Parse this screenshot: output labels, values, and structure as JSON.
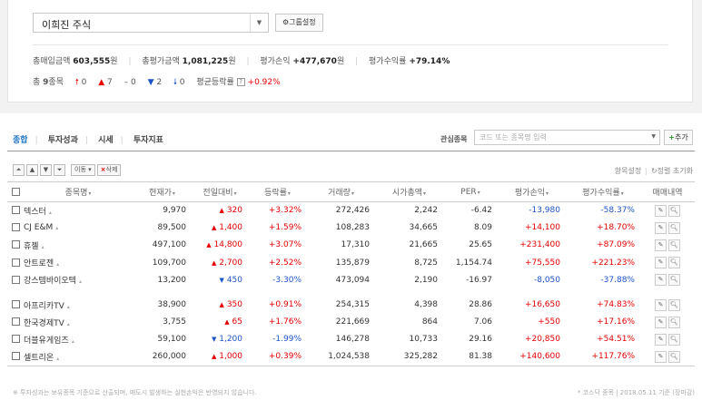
{
  "portfolio": {
    "selected": "이희진 주식",
    "group_button": "그룹설정",
    "summary": {
      "buy_label": "총매입금액",
      "buy_value": "603,555",
      "buy_unit": "원",
      "eval_label": "총평가금액",
      "eval_value": "1,081,225",
      "eval_unit": "원",
      "pl_label": "평가손익",
      "pl_value": "+477,670",
      "pl_unit": "원",
      "rate_label": "평가수익률",
      "rate_value": "+79.14%"
    },
    "counts": {
      "total_prefix": "총",
      "total_value": "9",
      "total_suffix": "종목",
      "upper_limit": "0",
      "up": "7",
      "flat": "0",
      "down": "2",
      "lower_limit": "0",
      "avg_label": "평균등락률",
      "avg_value": "+0.92%"
    }
  },
  "tabs": [
    "종합",
    "투자성과",
    "시세",
    "투자지표"
  ],
  "watch": {
    "label": "관심종목",
    "placeholder": "코드 또는 종목명 입력",
    "add_button": "추가"
  },
  "controls": {
    "move_label": "이동",
    "delete_label": "삭제"
  },
  "right_links": {
    "settings": "항목설정",
    "reset": "정렬 초기화"
  },
  "table": {
    "headers": [
      "종목명",
      "현재가",
      "전일대비",
      "등락률",
      "거래량",
      "시가총액",
      "PER",
      "평가손익",
      "평가수익률",
      "매매내역"
    ],
    "rows": [
      {
        "name": "덱스터",
        "price": "9,970",
        "change": "320",
        "dir": "up",
        "rate": "+3.32%",
        "volume": "272,426",
        "cap": "2,242",
        "per": "-6.42",
        "pl": "-13,980",
        "pl_dir": "down",
        "ret": "-58.37%"
      },
      {
        "name": "CJ E&M",
        "price": "89,500",
        "change": "1,400",
        "dir": "up",
        "rate": "+1.59%",
        "volume": "108,283",
        "cap": "34,665",
        "per": "8.09",
        "pl": "+14,100",
        "pl_dir": "up",
        "ret": "+18.70%"
      },
      {
        "name": "휴젤",
        "price": "497,100",
        "change": "14,800",
        "dir": "up",
        "rate": "+3.07%",
        "volume": "17,310",
        "cap": "21,665",
        "per": "25.65",
        "pl": "+231,400",
        "pl_dir": "up",
        "ret": "+87.09%"
      },
      {
        "name": "안트로젠",
        "price": "109,700",
        "change": "2,700",
        "dir": "up",
        "rate": "+2.52%",
        "volume": "135,879",
        "cap": "8,725",
        "per": "1,154.74",
        "pl": "+75,550",
        "pl_dir": "up",
        "ret": "+221.23%"
      },
      {
        "name": "강스템바이오텍",
        "price": "13,200",
        "change": "450",
        "dir": "down",
        "rate": "-3.30%",
        "volume": "473,094",
        "cap": "2,190",
        "per": "-16.97",
        "pl": "-8,050",
        "pl_dir": "down",
        "ret": "-37.88%"
      },
      {
        "name": "아프리카TV",
        "price": "38,900",
        "change": "350",
        "dir": "up",
        "rate": "+0.91%",
        "volume": "254,315",
        "cap": "4,398",
        "per": "28.86",
        "pl": "+16,650",
        "pl_dir": "up",
        "ret": "+74.83%"
      },
      {
        "name": "한국경제TV",
        "price": "3,755",
        "change": "65",
        "dir": "up",
        "rate": "+1.76%",
        "volume": "221,669",
        "cap": "864",
        "per": "7.06",
        "pl": "+550",
        "pl_dir": "up",
        "ret": "+17.16%"
      },
      {
        "name": "더블유게임즈",
        "price": "59,100",
        "change": "1,200",
        "dir": "down",
        "rate": "-1.99%",
        "volume": "146,278",
        "cap": "10,733",
        "per": "29.16",
        "pl": "+20,850",
        "pl_dir": "up",
        "ret": "+54.51%"
      },
      {
        "name": "셀트리온",
        "price": "260,000",
        "change": "1,000",
        "dir": "up",
        "rate": "+0.39%",
        "volume": "1,024,538",
        "cap": "325,282",
        "per": "81.38",
        "pl": "+140,600",
        "pl_dir": "up",
        "ret": "+117.76%"
      }
    ]
  },
  "footer": {
    "note": "투자성과는 보유종목 기준으로 산출되며, 매도시 발생하는 실현손익은 반영되지 않습니다.",
    "market_label": "코스닥 종목",
    "date": "2018.05.11 기준 (장마감)"
  },
  "colors": {
    "up": "#e50000",
    "down": "#1c54c8",
    "tab_active": "#1a73c7"
  },
  "icons": {
    "edit": "pencil-icon",
    "view": "magnifier-icon"
  }
}
